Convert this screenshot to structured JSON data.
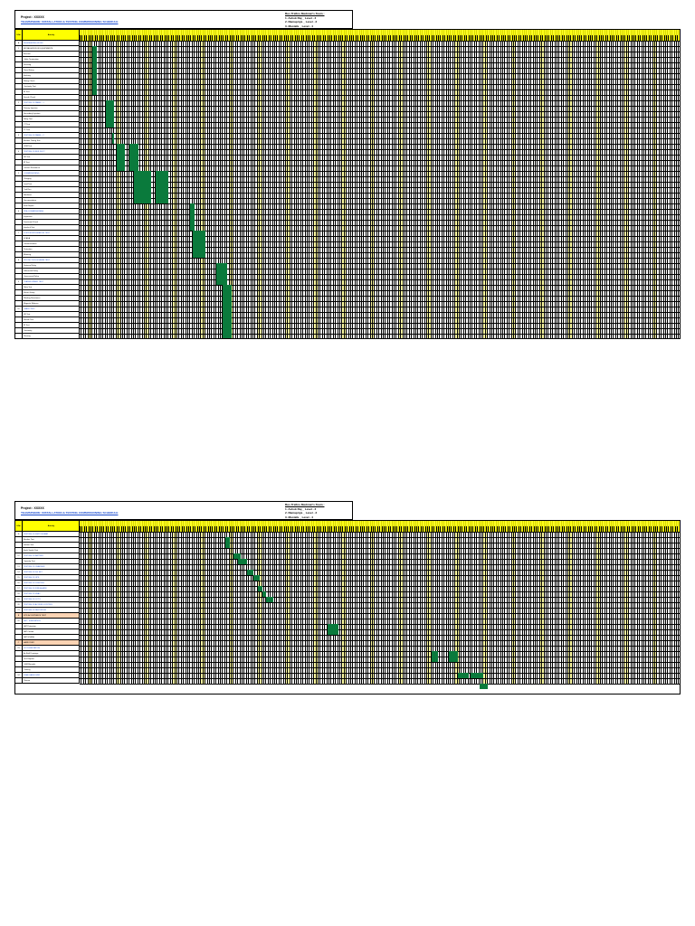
{
  "sheets": [
    {
      "project": "Project : XXXXX",
      "title": "TEAMSPHERE: INSTALLATION & TESTING COMMISSIONING SCHEDULE",
      "team_heading": "Bus Trafino Medman's Team :",
      "team": [
        "1. Ashok Raj _ Level - 3",
        "2. Ramapriya _ Level - 3",
        "3. Mustafa _ Level - 4"
      ],
      "header_no": "S.No",
      "header_activity": "Activity",
      "rows": [
        {
          "no": "A",
          "text": "ENGINEERING WORK",
          "kind": "head"
        },
        {
          "no": "1",
          "text": "INSTALLATION OF EQUIPMENTS"
        },
        {
          "no": "",
          "text": "Erection"
        },
        {
          "no": "",
          "text": "Cable Termination"
        },
        {
          "no": "",
          "text": "Dressing"
        },
        {
          "no": "",
          "text": "Panel Fixing"
        },
        {
          "no": "",
          "text": "Earthing"
        },
        {
          "no": "",
          "text": "Wiring Check"
        },
        {
          "no": "",
          "text": "Continuity Test"
        },
        {
          "no": "",
          "text": "IR Test"
        },
        {
          "no": "",
          "text": "Ferrule Check"
        },
        {
          "no": "2",
          "text": "TESTING OF PANEL - 1",
          "kind": "head"
        },
        {
          "no": "",
          "text": "Primary Injection"
        },
        {
          "no": "",
          "text": "Secondary Injection"
        },
        {
          "no": "",
          "text": "Relay Test"
        },
        {
          "no": "",
          "text": "CT Test"
        },
        {
          "no": "",
          "text": "PT Test"
        },
        {
          "no": "3",
          "text": "TESTING OF PANEL - 2",
          "kind": "head"
        },
        {
          "no": "",
          "text": "Breaker Timing Test"
        },
        {
          "no": "",
          "text": "CRM Test"
        },
        {
          "no": "4",
          "text": "TESTING OF BUS DUCT",
          "kind": "head"
        },
        {
          "no": "",
          "text": "HV Test"
        },
        {
          "no": "",
          "text": "IR Test"
        },
        {
          "no": "",
          "text": "Contact Resistance"
        },
        {
          "no": "5",
          "text": "COMMISSIONING",
          "kind": "head"
        },
        {
          "no": "",
          "text": "Charging"
        },
        {
          "no": "",
          "text": "Load Test"
        },
        {
          "no": "",
          "text": "Trial Run"
        },
        {
          "no": "",
          "text": "Handover"
        },
        {
          "no": "",
          "text": "Documentation"
        },
        {
          "no": "",
          "text": "Final Report"
        },
        {
          "no": "6",
          "text": "PRE-COMMISSIONING",
          "kind": "head"
        },
        {
          "no": "",
          "text": "Inspection"
        },
        {
          "no": "",
          "text": "Functional Check"
        },
        {
          "no": "",
          "text": "Interlock Test"
        },
        {
          "no": "7",
          "text": "SYSTEM INTEGRATION TEST",
          "kind": "head"
        },
        {
          "no": "",
          "text": "SCADA"
        },
        {
          "no": "",
          "text": "Communication"
        },
        {
          "no": "",
          "text": "Protection"
        },
        {
          "no": "",
          "text": "Metering"
        },
        {
          "no": "8",
          "text": "PROTECTION SCHEME TEST",
          "kind": "head"
        },
        {
          "no": "",
          "text": "Distance Relay"
        },
        {
          "no": "",
          "text": "Differential Relay"
        },
        {
          "no": "",
          "text": "Overcurrent Relay"
        },
        {
          "no": "9",
          "text": "TRANSFORMER TEST",
          "kind": "head"
        },
        {
          "no": "",
          "text": "Ratio Test"
        },
        {
          "no": "",
          "text": "Vector Group"
        },
        {
          "no": "",
          "text": "Winding Resistance"
        },
        {
          "no": "",
          "text": "Magnetic Balance"
        },
        {
          "no": "10",
          "text": "CABLE TEST",
          "kind": "head"
        },
        {
          "no": "",
          "text": "HV Test"
        },
        {
          "no": "",
          "text": "Sheath Test"
        },
        {
          "no": "",
          "text": "IR Test"
        },
        {
          "no": "",
          "text": "Continuity"
        },
        {
          "no": "",
          "text": "Phasing"
        }
      ]
    },
    {
      "project": "Project : XXXXX",
      "title": "TEAMSPHERE: INSTALLATION & TESTING COMMISSIONING SCHEDULE",
      "team_heading": "Bus Trafino Medman's Team :",
      "team": [
        "1. Ashok Raj _ Level - 3",
        "2. Ramapriya _ Level - 3",
        "3. Mustafa _ Level - 4"
      ],
      "header_no": "S.No",
      "header_activity": "Activity",
      "rows": [
        {
          "no": "11",
          "text": "TESTING OF SWITCHGEAR",
          "kind": "head"
        },
        {
          "no": "",
          "text": "Breaker Test"
        },
        {
          "no": "",
          "text": "Isolator Test"
        },
        {
          "no": "",
          "text": "Earth Switch Test"
        },
        {
          "no": "12",
          "text": "TESTING OF BATTERY",
          "kind": "head"
        },
        {
          "no": "",
          "text": "Capacity Test"
        },
        {
          "no": "13",
          "text": "TESTING OF CHARGER",
          "kind": "head"
        },
        {
          "no": "14",
          "text": "TESTING OF DG SET",
          "kind": "head"
        },
        {
          "no": "15",
          "text": "TESTING OF UPS",
          "kind": "head"
        },
        {
          "no": "16",
          "text": "TESTING OF LIGHTING",
          "kind": "head"
        },
        {
          "no": "17",
          "text": "TESTING OF FIRE ALARM",
          "kind": "head"
        },
        {
          "no": "18",
          "text": "TESTING OF HVAC",
          "kind": "head"
        },
        {
          "no": "19",
          "text": "TESTING OF CCTV",
          "kind": "head"
        },
        {
          "no": "20",
          "text": "TESTING OF ACCESS CONTROL",
          "kind": "head"
        },
        {
          "no": "21",
          "text": "TESTING OF PA SYSTEM",
          "kind": "head"
        },
        {
          "no": "B",
          "text": "SITE ACCEPTANCE TEST",
          "kind": "sec"
        },
        {
          "no": "22",
          "text": "SAT - SUBSTATION",
          "kind": "head"
        },
        {
          "no": "",
          "text": "SAT Protection"
        },
        {
          "no": "",
          "text": "SAT Control"
        },
        {
          "no": "",
          "text": "SAT SCADA"
        },
        {
          "no": "C",
          "text": "HANDOVER",
          "kind": "sec"
        },
        {
          "no": "23",
          "text": "DOCUMENTATION",
          "kind": "head"
        },
        {
          "no": "",
          "text": "As Built Drawings"
        },
        {
          "no": "",
          "text": "Test Reports"
        },
        {
          "no": "",
          "text": "O&M Manuals"
        },
        {
          "no": "",
          "text": "Training"
        },
        {
          "no": "24",
          "text": "FINAL HANDOVER",
          "kind": "head"
        },
        {
          "no": "",
          "text": "Closure"
        }
      ]
    }
  ]
}
